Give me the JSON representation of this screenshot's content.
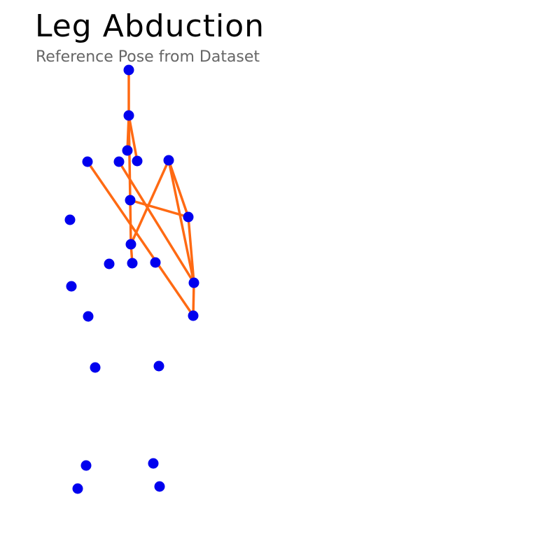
{
  "header": {
    "title": "Leg Abduction",
    "subtitle": "Reference Pose from Dataset"
  },
  "colors": {
    "joint": "#0000ee",
    "bone": "#ff6a13",
    "title": "#000000",
    "subtitle": "#666666"
  }
}
